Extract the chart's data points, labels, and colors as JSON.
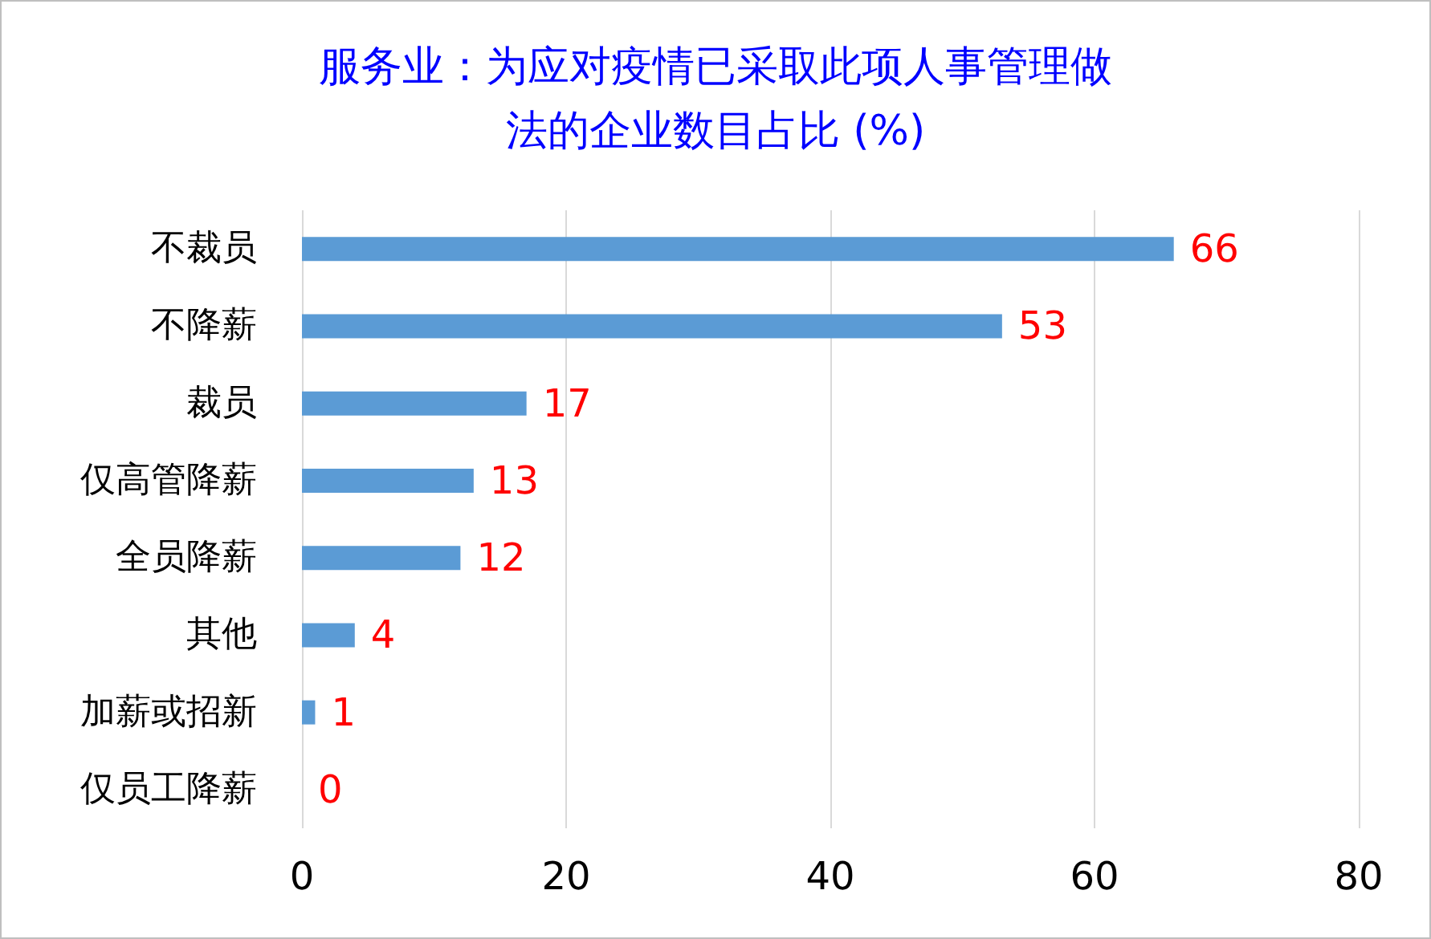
{
  "chart_data": {
    "type": "bar",
    "orientation": "horizontal",
    "title": "服务业：为应对疫情已采取此项人事管理做法的企业数目占比 (%)",
    "categories": [
      "不裁员",
      "不降薪",
      "裁员",
      "仅高管降薪",
      "全员降薪",
      "其他",
      "加薪或招新",
      "仅员工降薪"
    ],
    "values": [
      66,
      53,
      17,
      13,
      12,
      4,
      1,
      0
    ],
    "color": "#5b9bd5",
    "data_labels": true,
    "xlim": [
      0,
      80
    ],
    "xticks": [
      0,
      20,
      40,
      60,
      80
    ],
    "grid": "x"
  }
}
